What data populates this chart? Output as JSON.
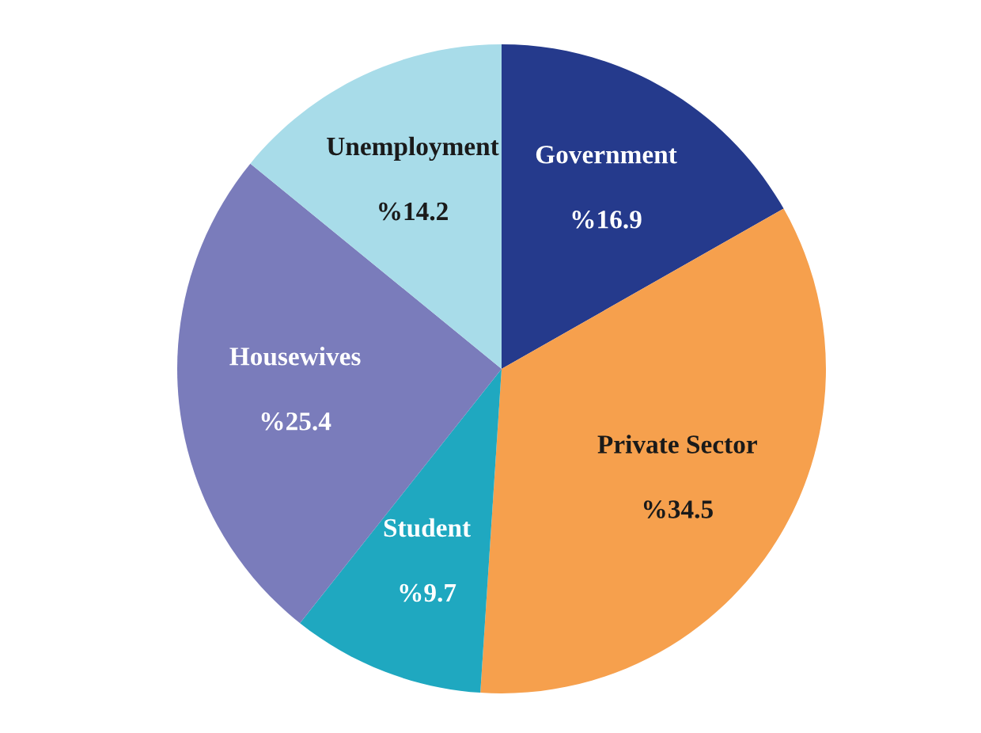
{
  "chart_data": {
    "type": "pie",
    "categories": [
      "Government",
      "Private Sector",
      "Student",
      "Housewives",
      "Unemployment"
    ],
    "values": [
      16.9,
      34.5,
      9.7,
      25.4,
      14.2
    ],
    "value_labels": [
      "%16.9",
      "%34.5",
      "%9.7",
      "%25.4",
      "%14.2"
    ],
    "colors": [
      "#253a8c",
      "#f6a04d",
      "#1fa8c0",
      "#7a7cbb",
      "#a8dce9"
    ]
  }
}
